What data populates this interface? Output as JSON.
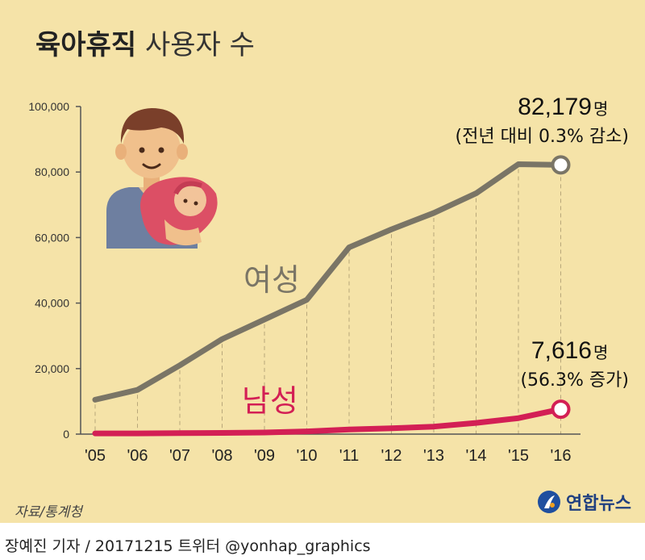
{
  "title_bold": "육아휴직",
  "title_light": "사용자 수",
  "source": "자료/통계청",
  "byline": "장예진 기자 / 20171215 트위터 @yonhap_graphics",
  "logo_text": "연합뉴스",
  "colors": {
    "background": "#f5e3a8",
    "female": "#7a7566",
    "male": "#d31f55",
    "axis": "#555555"
  },
  "icons": [
    "parent-with-baby-icon",
    "yonhap-logo-icon"
  ],
  "chart_data": {
    "type": "line",
    "title": "육아휴직 사용자 수",
    "xlabel": "",
    "ylabel": "",
    "categories": [
      "'05",
      "'06",
      "'07",
      "'08",
      "'09",
      "'10",
      "'11",
      "'12",
      "'13",
      "'14",
      "'15",
      "'16"
    ],
    "ylim": [
      0,
      100000
    ],
    "yticks": [
      0,
      20000,
      40000,
      60000,
      80000,
      100000
    ],
    "ytick_labels": [
      "0",
      "20,000",
      "40,000",
      "60,000",
      "80,000",
      "100,000"
    ],
    "grid": "vertical dashed",
    "series": [
      {
        "name": "여성",
        "color": "#7a7566",
        "values": [
          10500,
          13500,
          21000,
          29000,
          35000,
          41000,
          57000,
          62500,
          67500,
          73500,
          82400,
          82179
        ]
      },
      {
        "name": "남성",
        "color": "#d31f55",
        "values": [
          208,
          230,
          310,
          355,
          500,
          819,
          1402,
          1790,
          2293,
          3421,
          4872,
          7616
        ]
      }
    ],
    "annotations": [
      {
        "series": "여성",
        "value": "82,179",
        "unit": "명",
        "note": "(전년 대비 0.3% 감소)"
      },
      {
        "series": "남성",
        "value": "7,616",
        "unit": "명",
        "note": "(56.3% 증가)"
      }
    ]
  }
}
